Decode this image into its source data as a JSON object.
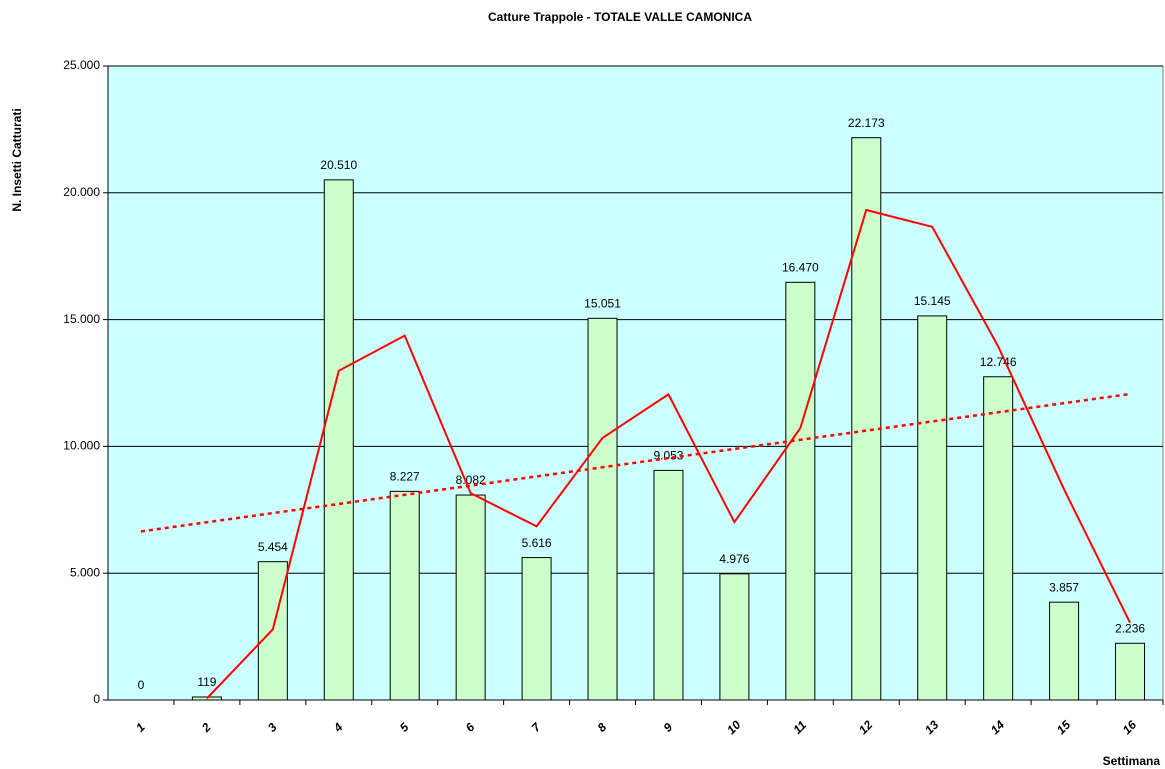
{
  "chart_data": {
    "type": "bar",
    "title": "Catture Trappole - TOTALE VALLE CAMONICA",
    "y_label": "N. Insetti Catturati",
    "x_label": "Settimana",
    "categories": [
      "1",
      "2",
      "3",
      "4",
      "5",
      "6",
      "7",
      "8",
      "9",
      "10",
      "11",
      "12",
      "13",
      "14",
      "15",
      "16"
    ],
    "values": [
      0,
      119,
      5454,
      20510,
      8227,
      8082,
      5616,
      15051,
      9053,
      4976,
      16470,
      22173,
      15145,
      12746,
      3857,
      2236
    ],
    "value_labels": [
      "0",
      "119",
      "5.454",
      "20.510",
      "8.227",
      "8.082",
      "5.616",
      "15.051",
      "9.053",
      "4.976",
      "16.470",
      "22.173",
      "15.145",
      "12.746",
      "3.857",
      "2.236"
    ],
    "color": "#ccffcc",
    "background": "#ccffff",
    "series": [
      {
        "type": "line",
        "style": "solid",
        "color": "#ff0000",
        "values": [
          null,
          59.5,
          2786.5,
          12982,
          14368.5,
          8154.5,
          6849,
          10333.5,
          12052,
          7014.5,
          10723,
          19321.5,
          18659,
          13945.5,
          8301.5,
          3046.5
        ]
      },
      {
        "type": "line",
        "style": "dotted",
        "color": "#ff0000",
        "values": [
          6647,
          7009,
          7370,
          7731,
          8093,
          8454,
          8815,
          9177,
          9538,
          9899,
          10261,
          10622,
          10983,
          11345,
          11706,
          12067
        ]
      }
    ],
    "ylim": [
      0,
      25000
    ],
    "yticks": [
      0,
      {
        "value": 5000,
        "label": "5.000"
      },
      {
        "value": 10000,
        "label": "10.000"
      },
      {
        "value": 15000,
        "label": "15.000"
      },
      {
        "value": 20000,
        "label": "20.000"
      },
      {
        "value": 25000,
        "label": "25.000"
      }
    ],
    "grid": true
  }
}
